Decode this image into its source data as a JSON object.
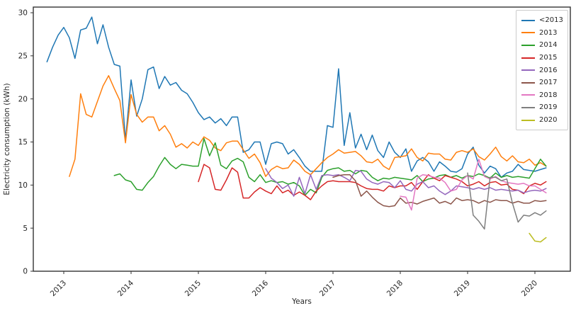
{
  "figure": {
    "background": "#ffffff",
    "frame_color": "#333333",
    "tick_color": "#333333",
    "text_color": "#262626"
  },
  "chart_data": {
    "type": "line",
    "title": "",
    "xlabel": "Years",
    "ylabel": "Electricity consumption (kWh)",
    "ylim": [
      0,
      30
    ],
    "y_ticks": [
      0,
      5,
      10,
      15,
      20,
      25,
      30
    ],
    "x_ticks": [
      "2013",
      "2014",
      "2015",
      "2016",
      "2017",
      "2018",
      "2019",
      "2020"
    ],
    "grid": false,
    "legend_position": "upper right",
    "x_unit": "month",
    "x_range": [
      "2012-10",
      "2020-03"
    ],
    "series": [
      {
        "name": "<2013",
        "color": "#1f77b4",
        "start": "2012-10",
        "values": [
          24.3,
          26.0,
          27.4,
          28.3,
          27.1,
          24.7,
          28.0,
          28.2,
          29.5,
          26.4,
          28.6,
          26.0,
          24.0,
          23.8,
          15.2,
          22.2,
          18.0,
          20.0,
          23.4,
          23.7,
          21.2,
          22.6,
          21.6,
          21.9,
          21.0,
          20.6,
          19.6,
          18.4,
          17.6,
          17.9,
          17.2,
          17.7,
          16.9,
          17.9,
          17.9,
          13.8,
          14.1,
          15.0,
          15.0,
          12.4,
          14.8,
          15.0,
          14.8,
          13.6,
          14.1,
          13.2,
          12.2,
          11.6,
          11.6,
          11.6,
          16.9,
          16.7,
          23.5,
          14.6,
          18.4,
          14.3,
          15.9,
          14.1,
          15.8,
          14.0,
          13.2,
          15.0,
          13.8,
          13.2,
          14.2,
          11.6,
          12.8,
          13.2,
          12.7,
          11.6,
          12.7,
          12.2,
          11.6,
          11.5,
          11.9,
          13.6,
          14.4,
          12.3,
          11.4,
          12.2,
          11.9,
          10.9,
          11.4,
          11.6,
          12.4,
          11.8,
          11.7,
          11.6,
          11.8,
          12.0
        ]
      },
      {
        "name": "2013",
        "color": "#ff7f0e",
        "start": "2013-02",
        "values": [
          11.0,
          13.0,
          20.6,
          18.2,
          17.9,
          19.7,
          21.5,
          22.7,
          21.2,
          19.8,
          14.9,
          20.5,
          18.2,
          17.3,
          17.9,
          17.9,
          16.3,
          16.9,
          15.9,
          14.4,
          14.8,
          14.3,
          15.0,
          14.6,
          15.6,
          15.2,
          14.3,
          14.0,
          14.9,
          15.1,
          15.1,
          14.1,
          13.1,
          13.6,
          12.6,
          11.0,
          11.8,
          12.2,
          11.9,
          12.0,
          12.9,
          12.4,
          11.6,
          11.2,
          11.9,
          12.6,
          13.2,
          13.6,
          14.1,
          13.7,
          13.8,
          13.9,
          13.4,
          12.7,
          12.6,
          13.0,
          12.2,
          11.8,
          13.2,
          13.3,
          13.4,
          14.2,
          13.2,
          12.8,
          13.7,
          13.6,
          13.6,
          13.0,
          12.9,
          13.8,
          14.0,
          13.8,
          14.2,
          13.3,
          12.9,
          13.6,
          14.4,
          13.3,
          12.8,
          13.4,
          12.7,
          12.6,
          13.0,
          12.3,
          12.6,
          12.2
        ]
      },
      {
        "name": "2014",
        "color": "#2ca02c",
        "start": "2013-10",
        "values": [
          11.1,
          11.3,
          10.6,
          10.4,
          9.5,
          9.4,
          10.3,
          11.0,
          12.2,
          13.2,
          12.4,
          11.9,
          12.4,
          12.3,
          12.2,
          12.2,
          15.4,
          13.4,
          14.9,
          12.3,
          11.9,
          12.8,
          13.1,
          12.7,
          10.9,
          10.4,
          11.2,
          10.3,
          10.5,
          10.3,
          10.4,
          10.1,
          10.3,
          9.9,
          8.8,
          9.5,
          9.1,
          10.9,
          11.7,
          11.9,
          12.0,
          11.6,
          11.7,
          11.3,
          11.7,
          11.6,
          10.9,
          10.5,
          10.8,
          10.7,
          10.9,
          10.8,
          10.7,
          10.6,
          11.1,
          10.4,
          10.7,
          10.8,
          11.1,
          11.2,
          10.9,
          11.1,
          10.8,
          11.1,
          11.0,
          11.3,
          11.1,
          10.8,
          11.4,
          10.9,
          11.1,
          10.9,
          11.0,
          10.9,
          10.8,
          11.9,
          13.0,
          12.2
        ]
      },
      {
        "name": "2015",
        "color": "#d62728",
        "start": "2015-01",
        "values": [
          10.4,
          12.4,
          12.0,
          9.5,
          9.4,
          10.6,
          12.0,
          11.5,
          8.5,
          8.5,
          9.2,
          9.7,
          9.3,
          9.0,
          9.9,
          9.1,
          9.4,
          8.8,
          9.2,
          8.8,
          8.3,
          9.3,
          9.9,
          10.4,
          10.5,
          10.4,
          10.4,
          10.4,
          10.3,
          9.9,
          9.6,
          9.5,
          9.5,
          9.3,
          9.9,
          9.7,
          9.9,
          9.9,
          10.3,
          9.5,
          10.4,
          11.2,
          10.8,
          10.5,
          11.1,
          10.9,
          10.7,
          10.4,
          9.9,
          10.1,
          10.4,
          9.9,
          10.3,
          10.4,
          10.0,
          10.1,
          9.5,
          9.4,
          9.0,
          9.9,
          10.2,
          10.0,
          10.4
        ]
      },
      {
        "name": "2016",
        "color": "#9467bd",
        "start": "2016-01",
        "values": [
          11.9,
          10.8,
          10.3,
          9.6,
          10.0,
          8.7,
          10.9,
          9.0,
          11.2,
          9.5,
          11.1,
          11.2,
          11.1,
          11.2,
          10.9,
          10.5,
          11.7,
          11.6,
          10.7,
          10.3,
          10.1,
          10.4,
          10.3,
          9.7,
          10.5,
          9.5,
          9.3,
          10.1,
          10.4,
          9.7,
          9.9,
          9.3,
          8.9,
          9.3,
          9.9,
          9.8,
          9.7,
          9.5,
          9.7,
          9.5,
          9.7,
          9.4,
          9.5,
          9.4,
          9.3,
          9.4,
          9.1,
          9.3,
          9.4,
          9.3,
          9.6
        ]
      },
      {
        "name": "2017",
        "color": "#8c564b",
        "start": "2017-01",
        "values": [
          10.9,
          11.1,
          11.2,
          11.2,
          10.5,
          8.7,
          9.3,
          8.6,
          8.0,
          7.6,
          7.5,
          7.6,
          8.5,
          7.9,
          8.0,
          7.8,
          8.1,
          8.3,
          8.5,
          7.9,
          8.1,
          7.8,
          8.5,
          8.2,
          8.3,
          8.2,
          7.9,
          8.2,
          8.0,
          8.3,
          8.2,
          8.2,
          7.9,
          8.1,
          7.9,
          7.9,
          8.2,
          8.1,
          8.2
        ]
      },
      {
        "name": "2018",
        "color": "#e377c2",
        "start": "2018-01",
        "values": [
          8.7,
          8.6,
          7.1,
          10.8,
          11.2,
          11.1,
          10.9,
          10.8,
          10.3,
          9.3,
          9.5,
          10.6,
          11.1,
          10.7,
          13.0,
          11.0,
          10.7,
          11.0,
          10.5,
          10.3,
          10.2,
          10.1,
          10.2,
          9.9,
          9.9,
          9.5,
          9.1
        ]
      },
      {
        "name": "2019",
        "color": "#7f7f7f",
        "start": "2019-01",
        "values": [
          11.4,
          6.5,
          5.8,
          4.9,
          10.9,
          10.9,
          10.5,
          10.7,
          7.9,
          5.7,
          6.5,
          6.4,
          6.8,
          6.5,
          7.0
        ]
      },
      {
        "name": "2020",
        "color": "#bcbd22",
        "start": "2019-12",
        "values": [
          4.4,
          3.5,
          3.4,
          3.9
        ]
      }
    ]
  }
}
